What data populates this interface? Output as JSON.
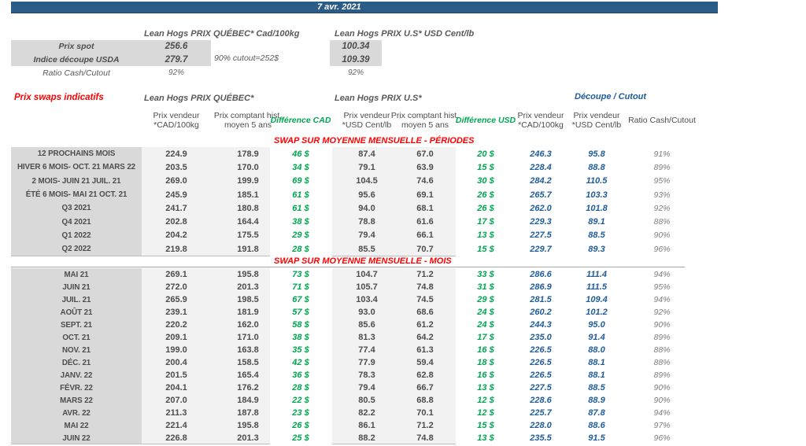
{
  "top": {
    "date": "7 avr. 2021"
  },
  "colors": {
    "banner_blue": "#2b5c87",
    "accent_red": "#ff0000",
    "diff_green": "#00a651",
    "cutout_blue": "#1f5c99"
  },
  "spot": {
    "quebec_header": "Lean Hogs PRIX QUÉBEC* Cad/100kg",
    "us_header": "Lean Hogs PRIX U.S* USD Cent/lb",
    "prix_spot_label": "Prix spot",
    "indice_label": "Indice découpe USDA",
    "ratio_label": "Ratio Cash/Cutout",
    "prix_spot_qc": "256.6",
    "indice_qc": "279.7",
    "prix_spot_us": "100.34",
    "indice_us": "109.39",
    "ratio_qc": "92%",
    "ratio_us": "92%",
    "note": "90% cutout=252$"
  },
  "swaps": {
    "title": "Prix swaps indicatifs",
    "group_quebec": "Lean Hogs PRIX QUÉBEC*",
    "group_us": "Lean Hogs PRIX U.S*",
    "group_cutout": "Découpe / Cutout",
    "columns": [
      "Prix vendeur *CAD/100kg",
      "Prix comptant hist. moyen 5 ans",
      "Différence CAD",
      "Prix vendeur *USD Cent/lb",
      "Prix comptant hist. moyen 5 ans",
      "Différence USD",
      "Prix vendeur *CAD/100kg",
      "Prix vendeur *USD Cent/lb",
      "Ratio Cash/Cutout"
    ],
    "sections": [
      {
        "title": "SWAP SUR MOYENNE MENSUELLE - PÉRIODES",
        "rows": [
          [
            "12 PROCHAINS MOIS",
            "224.9",
            "178.9",
            "46 $",
            "87.4",
            "67.0",
            "20 $",
            "246.3",
            "95.8",
            "91%"
          ],
          [
            "HIVER 6 MOIS- OCT. 21 MARS 22",
            "203.5",
            "170.0",
            "34 $",
            "79.1",
            "63.9",
            "15 $",
            "228.4",
            "88.8",
            "89%"
          ],
          [
            "2 MOIS- JUIN 21 JUIL. 21",
            "269.0",
            "199.9",
            "69 $",
            "104.5",
            "74.6",
            "30 $",
            "284.2",
            "110.5",
            "95%"
          ],
          [
            "ÉTÉ 6 MOIS- MAI 21 OCT. 21",
            "245.9",
            "185.1",
            "61 $",
            "95.6",
            "69.1",
            "26 $",
            "265.7",
            "103.3",
            "93%"
          ],
          [
            "Q3 2021",
            "241.7",
            "180.8",
            "61 $",
            "94.0",
            "68.1",
            "26 $",
            "262.0",
            "101.8",
            "92%"
          ],
          [
            "Q4 2021",
            "202.8",
            "164.4",
            "38 $",
            "78.8",
            "61.6",
            "17 $",
            "229.3",
            "89.1",
            "88%"
          ],
          [
            "Q1 2022",
            "204.2",
            "175.5",
            "29 $",
            "79.4",
            "66.1",
            "13 $",
            "227.5",
            "88.5",
            "90%"
          ],
          [
            "Q2 2022",
            "219.8",
            "191.8",
            "28 $",
            "85.5",
            "70.7",
            "15 $",
            "229.7",
            "89.3",
            "96%"
          ]
        ]
      },
      {
        "title": "SWAP SUR MOYENNE MENSUELLE - MOIS",
        "rows": [
          [
            "MAI 21",
            "269.1",
            "195.8",
            "73 $",
            "104.7",
            "71.2",
            "33 $",
            "286.6",
            "111.4",
            "94%"
          ],
          [
            "JUIN 21",
            "272.0",
            "201.3",
            "71 $",
            "105.7",
            "74.8",
            "31 $",
            "286.9",
            "111.5",
            "95%"
          ],
          [
            "JUIL. 21",
            "265.9",
            "198.5",
            "67 $",
            "103.4",
            "74.5",
            "29 $",
            "281.5",
            "109.4",
            "94%"
          ],
          [
            "AOÛT 21",
            "239.1",
            "181.9",
            "57 $",
            "93.0",
            "68.6",
            "24 $",
            "260.2",
            "101.2",
            "92%"
          ],
          [
            "SEPT. 21",
            "220.2",
            "162.0",
            "58 $",
            "85.6",
            "61.2",
            "24 $",
            "244.3",
            "95.0",
            "90%"
          ],
          [
            "OCT. 21",
            "209.1",
            "171.0",
            "38 $",
            "81.3",
            "64.2",
            "17 $",
            "235.0",
            "91.4",
            "89%"
          ],
          [
            "NOV. 21",
            "199.0",
            "163.8",
            "35 $",
            "77.4",
            "61.3",
            "16 $",
            "226.5",
            "88.0",
            "88%"
          ],
          [
            "DÉC. 21",
            "200.4",
            "158.5",
            "42 $",
            "77.9",
            "59.4",
            "18 $",
            "226.5",
            "88.1",
            "88%"
          ],
          [
            "JANV. 22",
            "201.5",
            "165.4",
            "36 $",
            "78.3",
            "62.8",
            "16 $",
            "226.5",
            "88.1",
            "89%"
          ],
          [
            "FÉVR. 22",
            "204.1",
            "176.2",
            "28 $",
            "79.4",
            "66.7",
            "13 $",
            "227.5",
            "88.5",
            "90%"
          ],
          [
            "MARS 22",
            "207.0",
            "184.9",
            "22 $",
            "80.5",
            "68.8",
            "12 $",
            "228.6",
            "88.9",
            "90%"
          ],
          [
            "AVR. 22",
            "211.3",
            "187.8",
            "23 $",
            "82.2",
            "70.1",
            "12 $",
            "225.7",
            "87.8",
            "94%"
          ],
          [
            "MAI 22",
            "221.4",
            "195.8",
            "26 $",
            "86.1",
            "71.2",
            "15 $",
            "228.0",
            "88.6",
            "97%"
          ],
          [
            "JUIN 22",
            "226.8",
            "201.3",
            "25 $",
            "88.2",
            "74.8",
            "13 $",
            "235.5",
            "91.5",
            "96%"
          ]
        ]
      }
    ]
  }
}
